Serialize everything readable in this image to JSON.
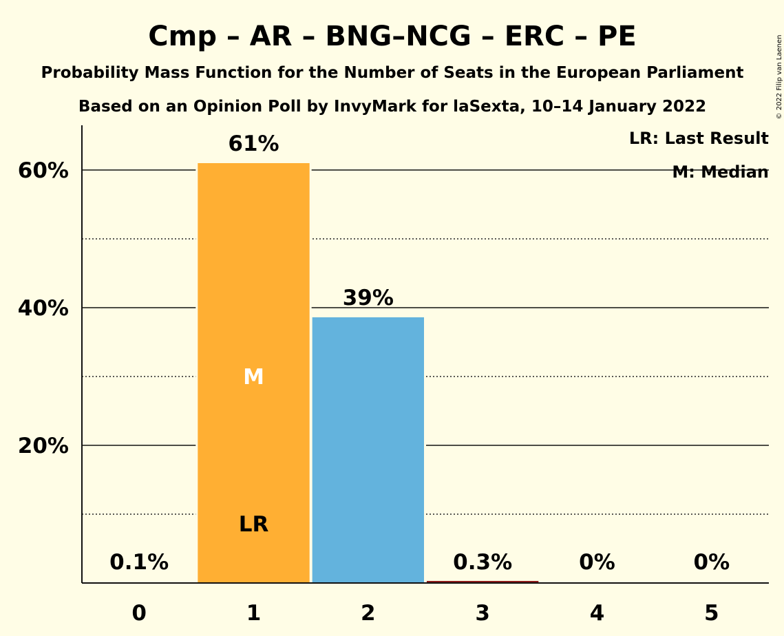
{
  "title": "Cmp – AR – BNG–NCG – ERC – PE",
  "subtitle": "Probability Mass Function for the Number of Seats in the European Parliament",
  "source": "Based on an Opinion Poll by InvyMark for laSexta, 10–14 January 2022",
  "copyright": "© 2022 Filip van Laenen",
  "legend": {
    "last_result": "LR: Last Result",
    "median": "M: Median"
  },
  "colors": {
    "background": "#FFFDE6",
    "median_bar": "#FFAF33",
    "bar_2": "#63B3DD",
    "bar_3": "#8B1A1A",
    "text": "#111111"
  },
  "chart_data": {
    "type": "bar",
    "categories": [
      "0",
      "1",
      "2",
      "3",
      "4",
      "5"
    ],
    "values": [
      0.1,
      61,
      38.6,
      0.3,
      0,
      0
    ],
    "labels": [
      "0.1%",
      "61%",
      "39%",
      "0.3%",
      "0%",
      "0%"
    ],
    "bar_colors": [
      "#FFAF33",
      "#FFAF33",
      "#63B3DD",
      "#8B1A1A",
      "#999999",
      "#999999"
    ],
    "ylim": [
      0,
      66.5
    ],
    "yticks": [
      20,
      40,
      60
    ],
    "ytick_labels": [
      "20%",
      "40%",
      "60%"
    ],
    "minor_gridlines": [
      10,
      30,
      50
    ],
    "last_result": {
      "category": "1",
      "label": "LR"
    },
    "median": {
      "category": "1",
      "label": "M"
    },
    "legend_position": "top-right",
    "grid": true
  }
}
